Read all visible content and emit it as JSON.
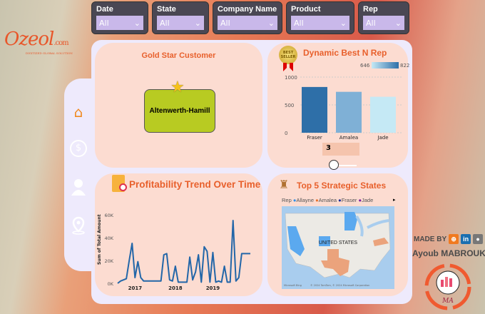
{
  "brand": {
    "logo_text": "Ozeol",
    "logo_suffix": ".com",
    "tagline": "DIGITIZED GLOBAL SOLUTION"
  },
  "filters": [
    {
      "label": "Date",
      "value": "All"
    },
    {
      "label": "State",
      "value": "All"
    },
    {
      "label": "Company Name",
      "value": "All"
    },
    {
      "label": "Product",
      "value": "All"
    },
    {
      "label": "Rep",
      "value": "All"
    }
  ],
  "nav": [
    {
      "icon": "home-icon"
    },
    {
      "icon": "money-icon"
    },
    {
      "icon": "user-icon"
    },
    {
      "icon": "location-pin-icon"
    }
  ],
  "gold_star": {
    "title": "Gold Star Customer",
    "customer": "Altenwerth-Hamill"
  },
  "best_rep": {
    "title": "Dynamic Best N Rep",
    "badge": "BEST SELLER",
    "slider_value": "3",
    "legend_min": "646",
    "legend_max": "822"
  },
  "profit": {
    "title": "Profitability Trend Over Time"
  },
  "states": {
    "title": "Top 5 Strategic States",
    "legend_title": "Rep",
    "legend": [
      {
        "name": "Allayne",
        "color": "#2f8fe8"
      },
      {
        "name": "Amalea",
        "color": "#e8702c"
      },
      {
        "name": "Fraser",
        "color": "#1a2a9a"
      },
      {
        "name": "Jade",
        "color": "#7a1aa0"
      }
    ],
    "map_label": "UNITED STATES",
    "attribution": "© 2024 TomTom, © 2024 Microsoft Corporation",
    "ms_label": "Microsoft Bing"
  },
  "credits": {
    "made_by": "MADE BY",
    "author": "Ayoub MABROUK",
    "monogram": "MA",
    "logo_ring": "Understand Analytics"
  },
  "colors": {
    "accent": "#e8602c",
    "card": "#fcdcd1",
    "panel": "#eeeafc",
    "filter_bg": "#4a4753",
    "filter_select": "#c9b8ea"
  },
  "chart_data": [
    {
      "type": "bar",
      "title": "Dynamic Best N Rep",
      "categories": [
        "Fraser",
        "Amalea",
        "Jade"
      ],
      "values": [
        822,
        735,
        646
      ],
      "ylim": [
        0,
        1000
      ],
      "yticks": [
        "0",
        "500",
        "1000"
      ],
      "colors": [
        "#2e6fa8",
        "#7fb0d6",
        "#c5e9f5"
      ],
      "grid": true
    },
    {
      "type": "line",
      "title": "Profitability Trend Over Time",
      "ylabel": "Sum of Total Amount",
      "yticks": [
        "0K",
        "20K",
        "40K",
        "60K"
      ],
      "ylim": [
        0,
        60000
      ],
      "xticks": [
        "2017",
        "2018",
        "2019"
      ],
      "values": [
        0,
        2000,
        3000,
        4000,
        20000,
        35000,
        5000,
        19000,
        5000,
        2000,
        2000,
        2000,
        2000,
        2000,
        2000,
        2000,
        25000,
        26000,
        3000,
        2000,
        15000,
        1000,
        1000,
        1000,
        1000,
        23000,
        3000,
        10000,
        25000,
        1000,
        32000,
        28000,
        1000,
        27000,
        1000,
        2000,
        1000,
        15000,
        1000,
        1000,
        55000,
        2000,
        5000,
        26000,
        26000,
        26000,
        26000
      ],
      "color": "#2266a8",
      "grid": false
    }
  ]
}
